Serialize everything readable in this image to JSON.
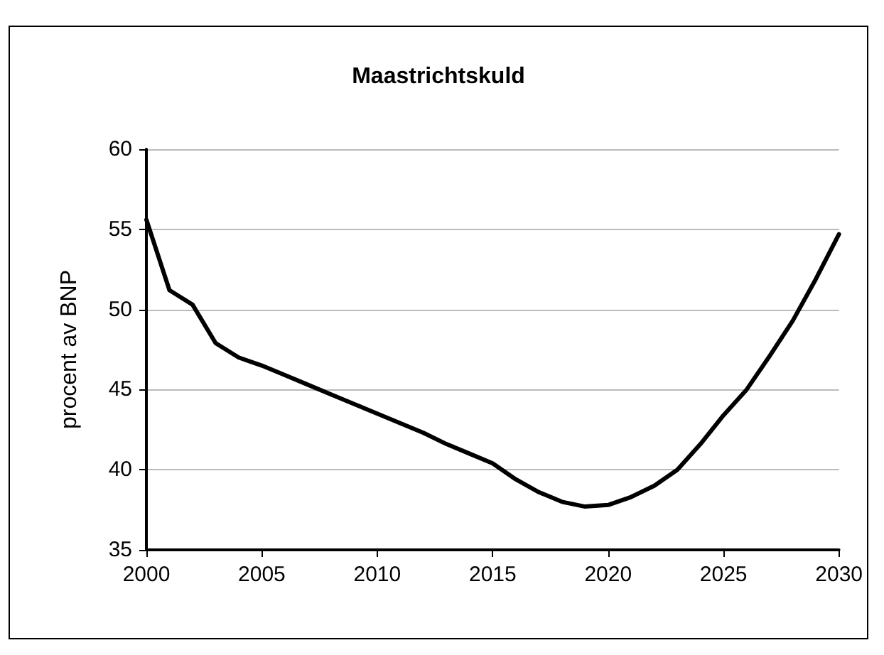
{
  "chart_data": {
    "type": "line",
    "title": "Maastrichtskuld",
    "ylabel": "procent av BNP",
    "x": [
      2000,
      2001,
      2002,
      2003,
      2004,
      2005,
      2006,
      2007,
      2008,
      2009,
      2010,
      2011,
      2012,
      2013,
      2014,
      2015,
      2016,
      2017,
      2018,
      2019,
      2020,
      2021,
      2022,
      2023,
      2024,
      2025,
      2026,
      2027,
      2028,
      2029,
      2030
    ],
    "series": [
      {
        "color": "#000000",
        "values": [
          55.6,
          51.2,
          50.3,
          47.9,
          47.0,
          46.5,
          45.9,
          45.3,
          44.7,
          44.1,
          43.5,
          42.9,
          42.3,
          41.6,
          41.0,
          40.4,
          39.4,
          38.6,
          38.0,
          37.7,
          37.8,
          38.3,
          39.0,
          40.0,
          41.6,
          43.4,
          45.0,
          47.1,
          49.3,
          51.9,
          54.7
        ]
      }
    ],
    "xlim": [
      2000,
      2030
    ],
    "xticks": [
      2000,
      2005,
      2010,
      2015,
      2020,
      2025,
      2030
    ],
    "ylim": [
      35,
      60
    ],
    "yticks": [
      35,
      40,
      45,
      50,
      55,
      60
    ],
    "grid": "y",
    "marker": "none",
    "line_style": "solid"
  }
}
